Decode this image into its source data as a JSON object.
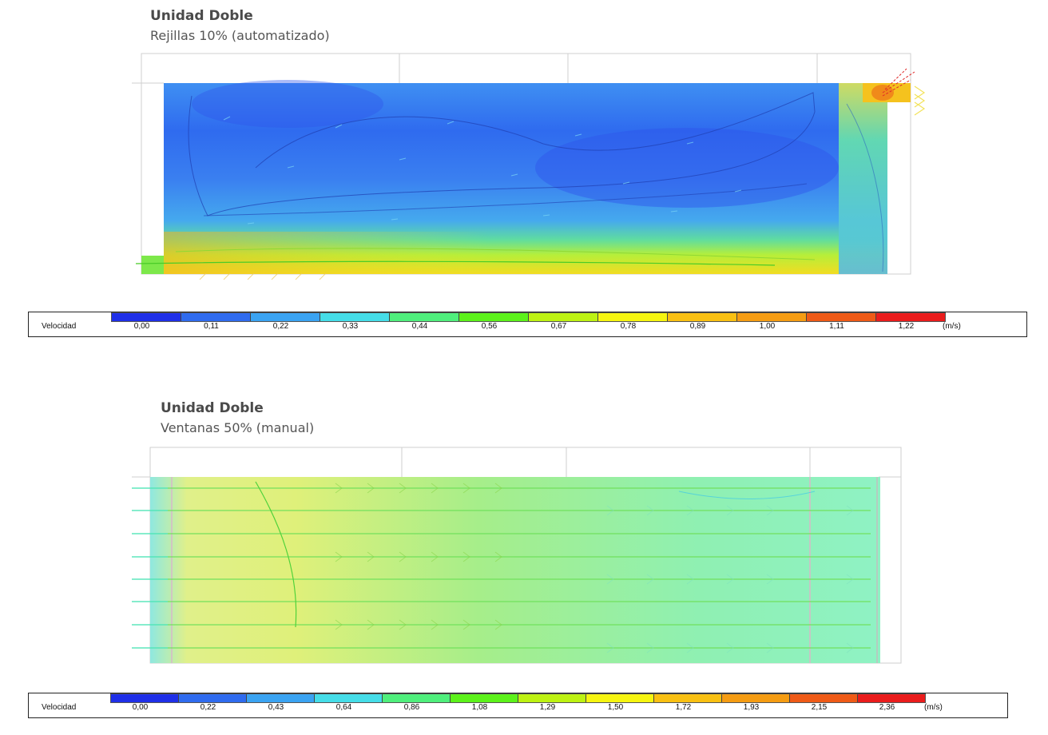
{
  "panels": [
    {
      "title": "Unidad Doble",
      "subtitle": "Rejillas 10% (automatizado)",
      "legend": {
        "label": "Velocidad",
        "unit": "(m/s)",
        "ticks": [
          "0,00",
          "0,11",
          "0,22",
          "0,33",
          "0,44",
          "0,56",
          "0,67",
          "0,78",
          "0,89",
          "1,00",
          "1,11",
          "1,22"
        ],
        "colors": [
          "#1f2fe8",
          "#2f6bef",
          "#3aa3f2",
          "#45dde8",
          "#4fef7c",
          "#5cf21a",
          "#bdf212",
          "#f6f510",
          "#f9c012",
          "#f59c12",
          "#ef5a16",
          "#ea1c1c"
        ]
      }
    },
    {
      "title": "Unidad Doble",
      "subtitle": "Ventanas 50% (manual)",
      "legend": {
        "label": "Velocidad",
        "unit": "(m/s)",
        "ticks": [
          "0,00",
          "0,22",
          "0,43",
          "0,64",
          "0,86",
          "1,08",
          "1,29",
          "1,50",
          "1,72",
          "1,93",
          "2,15",
          "2,36"
        ],
        "colors": [
          "#1f2fe8",
          "#2f6bef",
          "#3aa3f2",
          "#45dde8",
          "#4fef7c",
          "#5cf21a",
          "#bdf212",
          "#f6f510",
          "#f9c012",
          "#f59c12",
          "#ef5a16",
          "#ea1c1c"
        ]
      }
    }
  ]
}
